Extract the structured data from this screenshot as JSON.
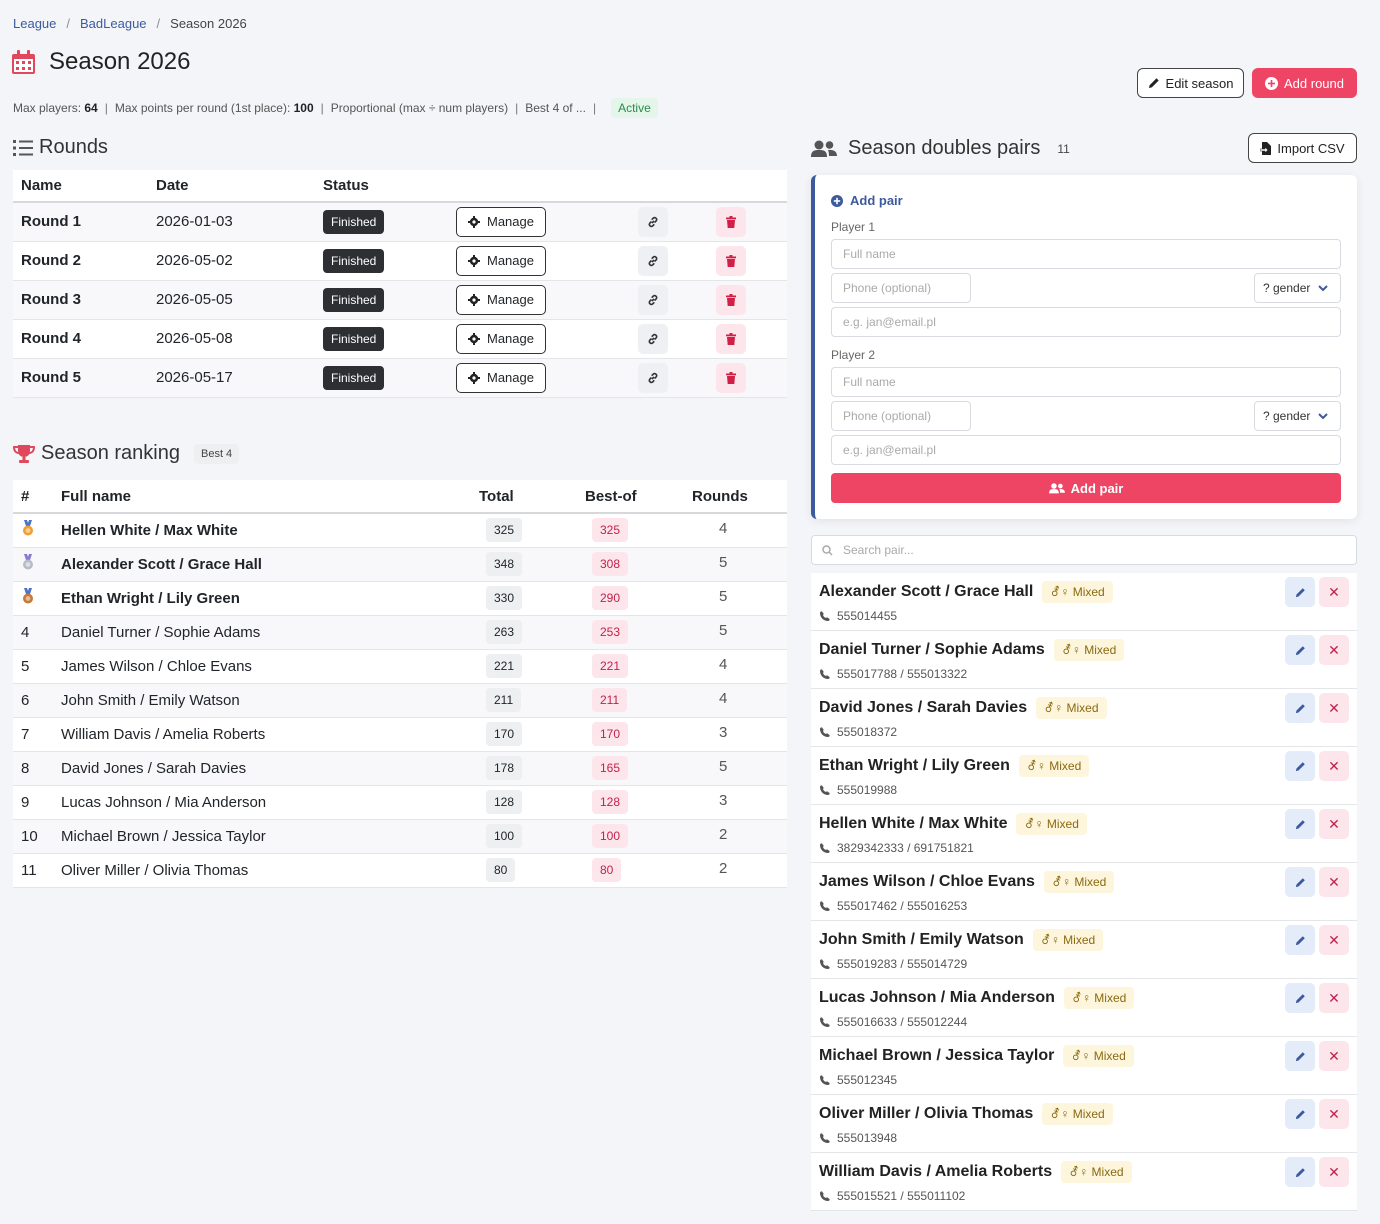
{
  "breadcrumb": {
    "items": [
      "League",
      "BadLeague"
    ],
    "current": "Season 2026"
  },
  "page": {
    "title": "Season 2026",
    "meta": {
      "max_players_label": "Max players:",
      "max_players": "64",
      "max_points_label": "Max points per round (1st place):",
      "max_points": "100",
      "scoring": "Proportional (max ÷ num players)",
      "best_of": "Best 4 of ...",
      "status": "Active"
    },
    "edit_label": "Edit season",
    "add_round_label": "Add round"
  },
  "rounds": {
    "heading": "Rounds",
    "columns": [
      "Name",
      "Date",
      "Status"
    ],
    "manage_label": "Manage",
    "rows": [
      {
        "name": "Round 1",
        "date": "2026-01-03",
        "status": "Finished"
      },
      {
        "name": "Round 2",
        "date": "2026-05-02",
        "status": "Finished"
      },
      {
        "name": "Round 3",
        "date": "2026-05-05",
        "status": "Finished"
      },
      {
        "name": "Round 4",
        "date": "2026-05-08",
        "status": "Finished"
      },
      {
        "name": "Round 5",
        "date": "2026-05-17",
        "status": "Finished"
      }
    ]
  },
  "ranking": {
    "heading": "Season ranking",
    "badge": "Best 4",
    "columns": [
      "#",
      "Full name",
      "Total",
      "Best-of",
      "Rounds"
    ],
    "rows": [
      {
        "rank": "",
        "medal": "gold",
        "name": "Hellen White / Max White",
        "total": "325",
        "best": "325",
        "rounds": "4"
      },
      {
        "rank": "",
        "medal": "silver",
        "name": "Alexander Scott / Grace Hall",
        "total": "348",
        "best": "308",
        "rounds": "5"
      },
      {
        "rank": "",
        "medal": "bronze",
        "name": "Ethan Wright / Lily Green",
        "total": "330",
        "best": "290",
        "rounds": "5"
      },
      {
        "rank": "4",
        "medal": "",
        "name": "Daniel Turner / Sophie Adams",
        "total": "263",
        "best": "253",
        "rounds": "5"
      },
      {
        "rank": "5",
        "medal": "",
        "name": "James Wilson / Chloe Evans",
        "total": "221",
        "best": "221",
        "rounds": "4"
      },
      {
        "rank": "6",
        "medal": "",
        "name": "John Smith / Emily Watson",
        "total": "211",
        "best": "211",
        "rounds": "4"
      },
      {
        "rank": "7",
        "medal": "",
        "name": "William Davis / Amelia Roberts",
        "total": "170",
        "best": "170",
        "rounds": "3"
      },
      {
        "rank": "8",
        "medal": "",
        "name": "David Jones / Sarah Davies",
        "total": "178",
        "best": "165",
        "rounds": "5"
      },
      {
        "rank": "9",
        "medal": "",
        "name": "Lucas Johnson / Mia Anderson",
        "total": "128",
        "best": "128",
        "rounds": "3"
      },
      {
        "rank": "10",
        "medal": "",
        "name": "Michael Brown / Jessica Taylor",
        "total": "100",
        "best": "100",
        "rounds": "2"
      },
      {
        "rank": "11",
        "medal": "",
        "name": "Oliver Miller / Olivia Thomas",
        "total": "80",
        "best": "80",
        "rounds": "2"
      }
    ]
  },
  "pairs": {
    "heading": "Season doubles pairs",
    "count": "11",
    "import_label": "Import CSV",
    "form": {
      "title": "Add pair",
      "player1_label": "Player 1",
      "player2_label": "Player 2",
      "name_placeholder": "Full name",
      "phone_placeholder": "Phone (optional)",
      "gender_value": "? gender",
      "email_placeholder": "e.g. jan@email.pl",
      "submit_label": "Add pair"
    },
    "search_placeholder": "Search pair...",
    "mixed_label": "Mixed",
    "list": [
      {
        "name": "Alexander Scott / Grace Hall",
        "phone": "555014455"
      },
      {
        "name": "Daniel Turner / Sophie Adams",
        "phone": "555017788 / 555013322"
      },
      {
        "name": "David Jones / Sarah Davies",
        "phone": "555018372"
      },
      {
        "name": "Ethan Wright / Lily Green",
        "phone": "555019988"
      },
      {
        "name": "Hellen White / Max White",
        "phone": "3829342333 / 691751821"
      },
      {
        "name": "James Wilson / Chloe Evans",
        "phone": "555017462 / 555016253"
      },
      {
        "name": "John Smith / Emily Watson",
        "phone": "555019283 / 555014729"
      },
      {
        "name": "Lucas Johnson / Mia Anderson",
        "phone": "555016633 / 555012244"
      },
      {
        "name": "Michael Brown / Jessica Taylor",
        "phone": "555012345"
      },
      {
        "name": "Oliver Miller / Olivia Thomas",
        "phone": "555013948"
      },
      {
        "name": "William Davis / Amelia Roberts",
        "phone": "555015521 / 555011102"
      }
    ]
  },
  "colors": {
    "accent": "#ef4565",
    "link": "#3d5a9e",
    "title_icon": "#e0485e"
  }
}
